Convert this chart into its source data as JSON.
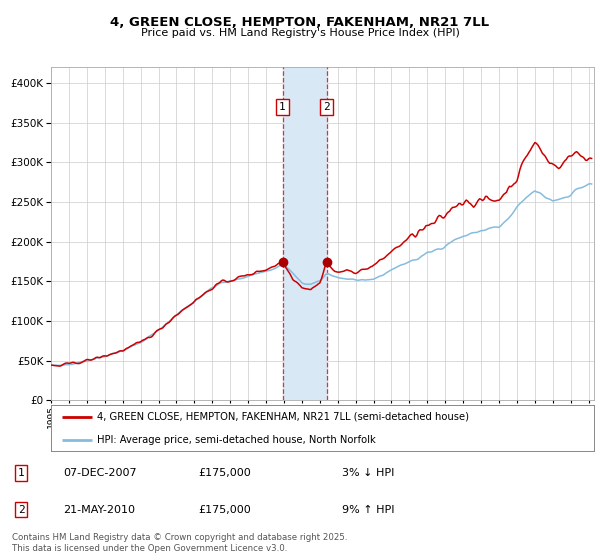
{
  "title": "4, GREEN CLOSE, HEMPTON, FAKENHAM, NR21 7LL",
  "subtitle": "Price paid vs. HM Land Registry's House Price Index (HPI)",
  "ylim": [
    0,
    420000
  ],
  "yticks": [
    0,
    50000,
    100000,
    150000,
    200000,
    250000,
    300000,
    350000,
    400000
  ],
  "hpi_color": "#85BCDE",
  "price_color": "#CC0000",
  "marker_color": "#AA0000",
  "dashed_line_color": "#DD3333",
  "shade_color": "#D8E8F5",
  "background_color": "#FFFFFF",
  "grid_color": "#CCCCCC",
  "sale1_date": 2007.92,
  "sale2_date": 2010.38,
  "sale1_price": 175000,
  "sale2_price": 175000,
  "legend_line1": "4, GREEN CLOSE, HEMPTON, FAKENHAM, NR21 7LL (semi-detached house)",
  "legend_line2": "HPI: Average price, semi-detached house, North Norfolk",
  "table_row1": [
    "1",
    "07-DEC-2007",
    "£175,000",
    "3% ↓ HPI"
  ],
  "table_row2": [
    "2",
    "21-MAY-2010",
    "£175,000",
    "9% ↑ HPI"
  ],
  "footnote": "Contains HM Land Registry data © Crown copyright and database right 2025.\nThis data is licensed under the Open Government Licence v3.0."
}
